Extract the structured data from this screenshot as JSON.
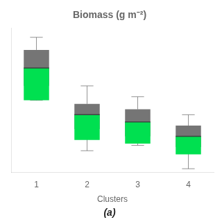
{
  "chart_data": {
    "type": "box",
    "title": "Biomass (g m⁻²)",
    "subtitle": "(a)",
    "x_label": "Clusters",
    "categories": [
      "1",
      "2",
      "3",
      "4"
    ],
    "series": [
      {
        "type": "box",
        "color": "#757575",
        "q1": [
          68,
          44,
          40,
          34
        ],
        "median": [
          78,
          52,
          48,
          40
        ],
        "q3": [
          88,
          58,
          55,
          46
        ],
        "whisker_low": [
          60,
          32,
          35,
          22
        ],
        "whisker_high": [
          95,
          68,
          62,
          52
        ]
      },
      {
        "type": "bar",
        "color": "#00e050",
        "values": [
          78,
          52,
          48,
          40
        ],
        "bottom": [
          60,
          38,
          36,
          30
        ]
      }
    ],
    "ylim": [
      20,
      100
    ],
    "grid": false,
    "tick_labels": "x"
  }
}
